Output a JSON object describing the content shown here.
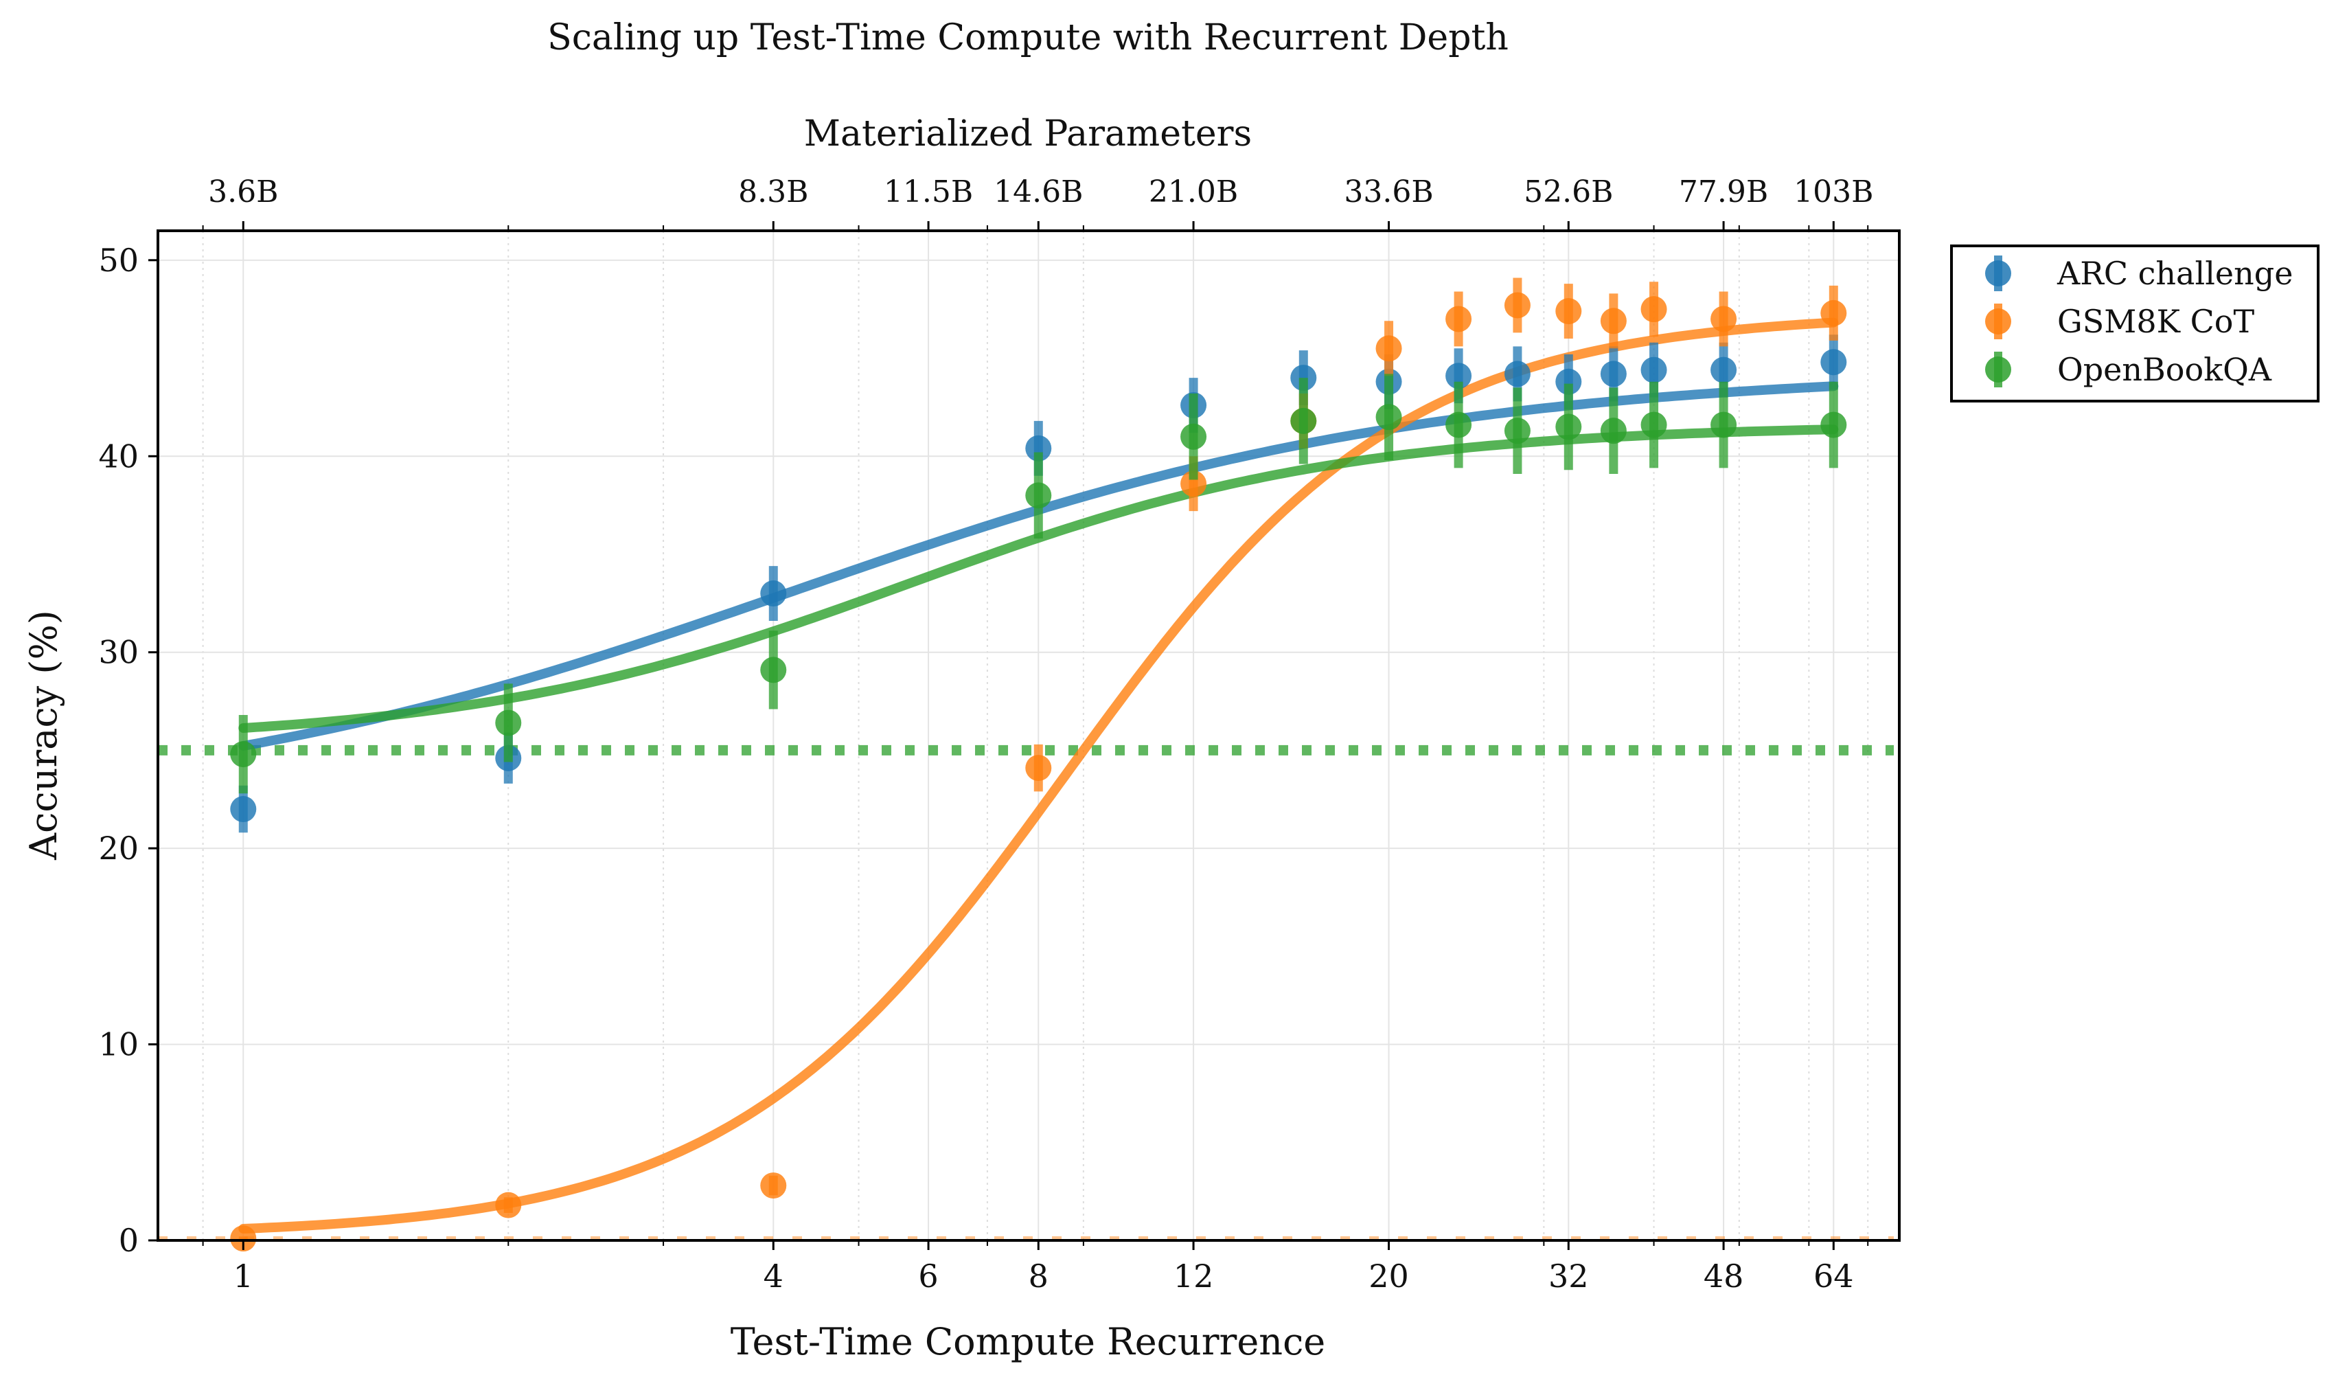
{
  "chart_data": {
    "type": "scatter",
    "title": "Scaling up Test-Time Compute with Recurrent Depth",
    "xlabel": "Test-Time Compute Recurrence",
    "ylabel": "Accuracy (%)",
    "xscale": "log",
    "xlim": [
      0.8,
      76
    ],
    "ylim": [
      0,
      51.5
    ],
    "grid": true,
    "x_ticks": [
      1,
      4,
      6,
      8,
      12,
      20,
      32,
      48,
      64
    ],
    "x_tick_labels": [
      "1",
      "4",
      "6",
      "8",
      "12",
      "20",
      "32",
      "48",
      "64"
    ],
    "y_ticks": [
      0,
      10,
      20,
      30,
      40,
      50
    ],
    "y_tick_labels": [
      "0",
      "10",
      "20",
      "30",
      "40",
      "50"
    ],
    "top_axis": {
      "label": "Materialized Parameters",
      "ticks": [
        1,
        4,
        6,
        8,
        12,
        20,
        32,
        48,
        64
      ],
      "tick_labels": [
        "3.6B",
        "8.3B",
        "11.5B",
        "14.6B",
        "21.0B",
        "33.6B",
        "52.6B",
        "77.9B",
        "103B"
      ]
    },
    "legend": {
      "position": "outside-right",
      "entries": [
        "ARC challenge",
        "GSM8K CoT",
        "OpenBookQA"
      ]
    },
    "baselines": [
      {
        "series": "OpenBookQA",
        "y": 25,
        "style": "dotted"
      },
      {
        "series": "GSM8K CoT",
        "y": 0,
        "style": "dashed"
      }
    ],
    "series": [
      {
        "name": "ARC challenge",
        "color": "#1f77b4",
        "x": [
          1,
          2,
          4,
          8,
          12,
          16,
          20,
          24,
          28,
          32,
          36,
          40,
          48,
          64
        ],
        "y": [
          22.0,
          24.6,
          33.0,
          40.4,
          42.6,
          44.0,
          43.8,
          44.1,
          44.2,
          43.8,
          44.2,
          44.4,
          44.4,
          44.8
        ],
        "err": [
          1.2,
          1.3,
          1.4,
          1.4,
          1.4,
          1.4,
          1.4,
          1.4,
          1.4,
          1.4,
          1.4,
          1.4,
          1.4,
          1.4
        ],
        "fit": {
          "low": 21.8,
          "high": 44.4,
          "mid": 4.2,
          "slope": 1.2
        }
      },
      {
        "name": "GSM8K CoT",
        "color": "#ff7f0e",
        "x": [
          1,
          2,
          4,
          8,
          12,
          16,
          20,
          24,
          28,
          32,
          36,
          40,
          48,
          64
        ],
        "y": [
          0.1,
          1.8,
          2.8,
          24.1,
          38.6,
          41.8,
          45.5,
          47.0,
          47.7,
          47.4,
          46.9,
          47.5,
          47.0,
          47.3
        ],
        "err": [
          0.1,
          0.4,
          0.5,
          1.2,
          1.4,
          1.4,
          1.4,
          1.4,
          1.4,
          1.4,
          1.4,
          1.4,
          1.4,
          1.4
        ],
        "fit": {
          "low": 0.25,
          "high": 47.3,
          "mid": 8.6,
          "slope": 2.28
        }
      },
      {
        "name": "OpenBookQA",
        "color": "#2ca02c",
        "x": [
          1,
          2,
          4,
          8,
          12,
          16,
          20,
          24,
          28,
          32,
          36,
          40,
          48,
          64
        ],
        "y": [
          24.8,
          26.4,
          29.1,
          38.0,
          41.0,
          41.8,
          42.0,
          41.6,
          41.3,
          41.5,
          41.3,
          41.6,
          41.6,
          41.6
        ],
        "err": [
          2.0,
          2.0,
          2.0,
          2.2,
          2.2,
          2.2,
          2.2,
          2.2,
          2.2,
          2.2,
          2.2,
          2.2,
          2.2,
          2.2
        ],
        "fit": {
          "low": 25.4,
          "high": 41.6,
          "mid": 5.7,
          "slope": 1.75
        }
      }
    ]
  }
}
